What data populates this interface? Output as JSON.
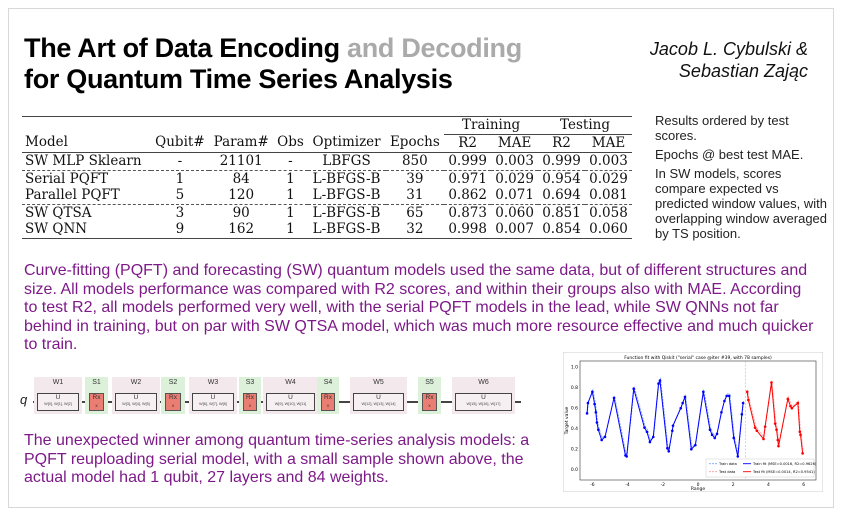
{
  "title": {
    "part1": "The Art of Data Encoding",
    "part2": "and Decoding",
    "line2": "for Quantum Time Series Analysis"
  },
  "authors": {
    "line1": "Jacob L. Cybulski &",
    "line2": "Sebastian Zając"
  },
  "table": {
    "group_headers": {
      "training": "Training",
      "testing": "Testing"
    },
    "columns": [
      "Model",
      "Qubit#",
      "Param#",
      "Obs",
      "Optimizer",
      "Epochs",
      "R2",
      "MAE",
      "R2",
      "MAE"
    ],
    "rows": [
      [
        "SW MLP Sklearn",
        "-",
        "21101",
        "-",
        "LBFGS",
        "850",
        "0.999",
        "0.003",
        "0.999",
        "0.003"
      ],
      [
        "Serial PQFT",
        "1",
        "84",
        "1",
        "L-BFGS-B",
        "39",
        "0.971",
        "0.029",
        "0.954",
        "0.029"
      ],
      [
        "Parallel PQFT",
        "5",
        "120",
        "1",
        "L-BFGS-B",
        "31",
        "0.862",
        "0.071",
        "0.694",
        "0.081"
      ],
      [
        "SW QTSA",
        "3",
        "90",
        "1",
        "L-BFGS-B",
        "65",
        "0.873",
        "0.060",
        "0.851",
        "0.058"
      ],
      [
        "SW QNN",
        "9",
        "162",
        "1",
        "L-BFGS-B",
        "32",
        "0.998",
        "0.007",
        "0.854",
        "0.060"
      ]
    ]
  },
  "notes": [
    "Results ordered by test scores.",
    "Epochs @ best test MAE.",
    "In SW models,  scores compare  expected vs predicted window values, with overlapping window averaged by TS position."
  ],
  "paragraph1": "Curve-fitting (PQFT) and forecasting (SW) quantum models used the same data, but of different structures and size. All models performance was compared with R2 scores, and within their groups also with MAE. According to test R2, all models performed very well, with the serial PQFT models in the lead, while SW QNNs not far behind in training, but on par with SW QTSA model, which was much more resource effective and much quicker to train.",
  "paragraph2": "The unexpected winner among quantum time-series analysis models: a PQFT reuploading serial model, with a small sample shown above, the actual model had 1 qubit, 27 layers and 84 weights.",
  "circuit": {
    "qubit": "q",
    "blocks": [
      {
        "type": "w",
        "label": "W1",
        "gate": "U",
        "weights": "W[0], W[1], W[2]"
      },
      {
        "type": "s",
        "label": "S1",
        "gate": "Rx",
        "param": "x"
      },
      {
        "type": "w",
        "label": "W2",
        "gate": "U",
        "weights": "W[3], W[4], W[5]"
      },
      {
        "type": "s",
        "label": "S2",
        "gate": "Rx",
        "param": "x"
      },
      {
        "type": "w",
        "label": "W3",
        "gate": "U",
        "weights": "W[6], W[7], W[8]"
      },
      {
        "type": "s",
        "label": "S3",
        "gate": "Rx",
        "param": "x"
      },
      {
        "type": "w",
        "label": "W4",
        "gate": "U",
        "weights": "W[9], W[10], W[11]"
      },
      {
        "type": "s",
        "label": "S4",
        "gate": "Rx",
        "param": "x"
      },
      {
        "type": "w",
        "label": "W5",
        "gate": "U",
        "weights": "W[12], W[13], W[14]"
      },
      {
        "type": "s",
        "label": "S5",
        "gate": "Rx",
        "param": "x"
      },
      {
        "type": "w",
        "label": "W6",
        "gate": "U",
        "weights": "W[15], W[16], W[17]"
      }
    ],
    "colors": {
      "weights_bg": "#f3e9ec",
      "encoding_bg": "#dcf0da",
      "rx_gate": "#ea7e72"
    }
  },
  "chart_data": {
    "type": "line",
    "title": "Function fit with Qiskit (\"serial\" case @iter #39, with 78 samples)",
    "xlabel": "Range",
    "ylabel": "Target value",
    "xlim": [
      -6.7,
      6.7
    ],
    "ylim": [
      -0.1,
      1.06
    ],
    "xticks": [
      -6,
      -4,
      -2,
      0,
      2,
      4,
      6
    ],
    "yticks": [
      0.0,
      0.2,
      0.4,
      0.6,
      0.8,
      1.0
    ],
    "split_x": 2.7,
    "legend_position": "bottom-right",
    "series": [
      {
        "name": "Train fit (MSE=0.0016, R2=0.9626)",
        "color": "#0000ff",
        "x": [
          -6.3,
          -6.25,
          -6.0,
          -5.87,
          -5.8,
          -5.74,
          -5.66,
          -5.47,
          -5.28,
          -4.77,
          -4.12,
          -4.05,
          -3.65,
          -3.04,
          -2.9,
          -2.73,
          -2.54,
          -2.24,
          -2.16,
          -1.74,
          -1.66,
          -1.46,
          -1.42,
          -0.98,
          -0.87,
          -0.74,
          -0.38,
          -0.15,
          0.3,
          0.68,
          0.8,
          0.95,
          1.08,
          1.33,
          1.5,
          1.63,
          1.77,
          2.03,
          2.26,
          2.49,
          2.56
        ],
        "y": [
          0.55,
          0.65,
          0.76,
          0.64,
          0.56,
          0.46,
          0.39,
          0.29,
          0.32,
          0.7,
          0.14,
          0.13,
          0.79,
          0.41,
          0.37,
          0.27,
          0.32,
          0.84,
          0.87,
          0.21,
          0.18,
          0.38,
          0.43,
          0.6,
          0.65,
          0.71,
          0.2,
          0.24,
          0.76,
          0.39,
          0.34,
          0.31,
          0.35,
          0.56,
          0.67,
          0.72,
          0.72,
          0.31,
          0.13,
          0.54,
          0.65
        ]
      },
      {
        "name": "Test fit (MSE=0.0014, R2=0.9541)",
        "color": "#ff0000",
        "x": [
          2.79,
          2.86,
          3.24,
          3.34,
          3.72,
          3.81,
          4.17,
          4.38,
          4.46,
          4.53,
          4.57,
          5.1,
          5.25,
          5.33,
          5.67,
          5.78,
          5.82,
          5.94
        ],
        "y": [
          0.76,
          0.68,
          0.41,
          0.38,
          0.3,
          0.42,
          0.85,
          0.45,
          0.39,
          0.29,
          0.23,
          0.69,
          0.62,
          0.6,
          0.65,
          0.37,
          0.34,
          0.16
        ]
      }
    ],
    "legend": [
      "Train data",
      "Test data",
      "Train fit (MSE=0.0016, R2=0.9626)",
      "Test fit (MSE=0.0014, R2=0.9541)"
    ]
  }
}
